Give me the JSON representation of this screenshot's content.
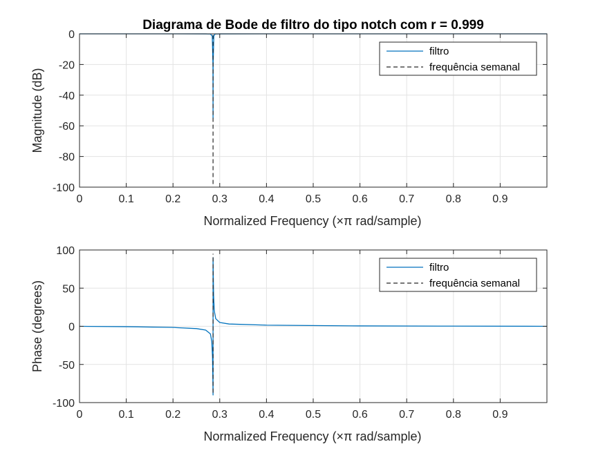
{
  "figure": {
    "title": "Diagrama de Bode de filtro do tipo notch com r = 0.999"
  },
  "colors": {
    "series_filtro": "#0072BD",
    "series_freq": "#262626",
    "axes": "#262626",
    "grid": "#e3e3e3",
    "background": "#ffffff"
  },
  "chart_data": [
    {
      "type": "line",
      "name": "magnitude",
      "title": "Diagrama de Bode de filtro do tipo notch com r = 0.999",
      "xlabel": "Normalized Frequency  (×π rad/sample)",
      "ylabel": "Magnitude (dB)",
      "xlim": [
        0,
        1
      ],
      "ylim": [
        -100,
        0
      ],
      "xticks": [
        0,
        0.1,
        0.2,
        0.3,
        0.4,
        0.5,
        0.6,
        0.7,
        0.8,
        0.9
      ],
      "xtick_labels": [
        "0",
        "0.1",
        "0.2",
        "0.3",
        "0.4",
        "0.5",
        "0.6",
        "0.7",
        "0.8",
        "0.9"
      ],
      "yticks": [
        -100,
        -80,
        -60,
        -40,
        -20,
        0
      ],
      "ytick_labels": [
        "-100",
        "-80",
        "-60",
        "-40",
        "-20",
        "0"
      ],
      "grid": true,
      "legend": "top-right",
      "series": [
        {
          "name": "filtro",
          "style": "solid",
          "x": [
            0,
            0.2,
            0.27,
            0.28,
            0.284,
            0.2855,
            0.2857,
            0.2859,
            0.2873,
            0.29,
            0.3,
            0.4,
            0.6,
            0.8,
            1.0
          ],
          "y": [
            0,
            0,
            -0.02,
            -0.1,
            -1.5,
            -20,
            -55,
            -20,
            -1.5,
            -0.1,
            -0.02,
            0,
            0,
            0,
            0
          ]
        },
        {
          "name": "frequência semanal",
          "style": "dashed",
          "x": [
            0.2857,
            0.2857
          ],
          "y": [
            -98,
            0
          ]
        }
      ]
    },
    {
      "type": "line",
      "name": "phase",
      "title": "",
      "xlabel": "Normalized Frequency  (×π rad/sample)",
      "ylabel": "Phase (degrees)",
      "xlim": [
        0,
        1
      ],
      "ylim": [
        -100,
        100
      ],
      "xticks": [
        0,
        0.1,
        0.2,
        0.3,
        0.4,
        0.5,
        0.6,
        0.7,
        0.8,
        0.9
      ],
      "xtick_labels": [
        "0",
        "0.1",
        "0.2",
        "0.3",
        "0.4",
        "0.5",
        "0.6",
        "0.7",
        "0.8",
        "0.9"
      ],
      "yticks": [
        -100,
        -50,
        0,
        50,
        100
      ],
      "ytick_labels": [
        "-100",
        "-50",
        "0",
        "50",
        "100"
      ],
      "grid": true,
      "legend": "top-right",
      "series": [
        {
          "name": "filtro",
          "style": "solid",
          "x": [
            0,
            0.1,
            0.2,
            0.25,
            0.27,
            0.28,
            0.283,
            0.2845,
            0.2853,
            0.2857,
            0.2857,
            0.2861,
            0.2869,
            0.2884,
            0.2914,
            0.3,
            0.32,
            0.4,
            0.6,
            0.8,
            1.0
          ],
          "y": [
            0,
            -0.5,
            -1.5,
            -3,
            -5,
            -10,
            -20,
            -40,
            -70,
            -90,
            90,
            70,
            40,
            20,
            10,
            5,
            3,
            1.5,
            0.5,
            0.2,
            0
          ]
        },
        {
          "name": "frequência semanal",
          "style": "dashed",
          "x": [
            0.2857,
            0.2857
          ],
          "y": [
            -87,
            95
          ]
        }
      ]
    }
  ]
}
